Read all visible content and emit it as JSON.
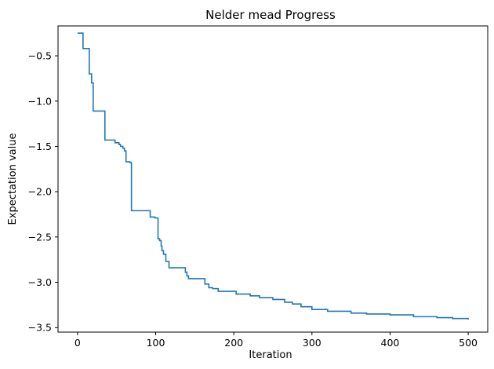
{
  "chart_data": {
    "type": "line",
    "title": "Nelder mead Progress",
    "xlabel": "Iteration",
    "ylabel": "Expectation value",
    "xlim": [
      -25,
      525
    ],
    "ylim": [
      -3.55,
      -0.17
    ],
    "xticks": [
      0,
      100,
      200,
      300,
      400,
      500
    ],
    "xtick_labels": [
      "0",
      "100",
      "200",
      "300",
      "400",
      "500"
    ],
    "yticks": [
      -0.5,
      -1.0,
      -1.5,
      -2.0,
      -2.5,
      -3.0,
      -3.5
    ],
    "ytick_labels": [
      "−0.5",
      "−1.0",
      "−1.5",
      "−2.0",
      "−2.5",
      "−3.0",
      "−3.5"
    ],
    "grid": false,
    "legend": "none",
    "line_color": "#1f77b4",
    "series": [
      {
        "step": "post",
        "x": [
          0,
          7,
          15,
          18,
          20,
          35,
          48,
          53,
          55,
          58,
          60,
          62,
          67,
          69,
          93,
          99,
          103,
          105,
          107,
          108,
          110,
          113,
          117,
          120,
          138,
          140,
          142,
          145,
          163,
          168,
          173,
          180,
          203,
          221,
          233,
          250,
          265,
          275,
          286,
          300,
          320,
          350,
          370,
          400,
          430,
          460,
          480,
          500
        ],
        "y": [
          -0.25,
          -0.42,
          -0.7,
          -0.8,
          -1.11,
          -1.43,
          -1.46,
          -1.48,
          -1.5,
          -1.52,
          -1.55,
          -1.67,
          -1.68,
          -2.21,
          -2.28,
          -2.29,
          -2.52,
          -2.54,
          -2.6,
          -2.65,
          -2.69,
          -2.77,
          -2.84,
          -2.84,
          -2.89,
          -2.93,
          -2.96,
          -2.96,
          -3.02,
          -3.06,
          -3.07,
          -3.1,
          -3.13,
          -3.15,
          -3.17,
          -3.19,
          -3.22,
          -3.24,
          -3.27,
          -3.3,
          -3.32,
          -3.34,
          -3.35,
          -3.36,
          -3.38,
          -3.39,
          -3.4,
          -3.41
        ]
      }
    ]
  }
}
